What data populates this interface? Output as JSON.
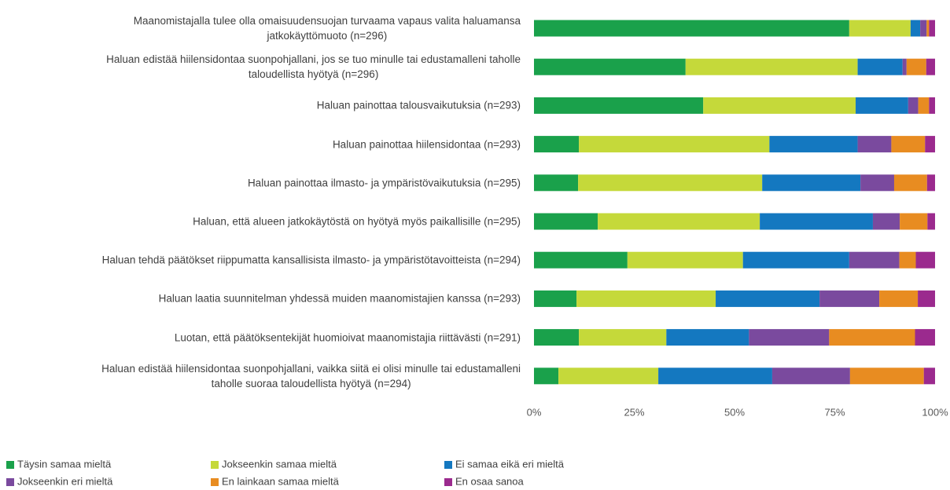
{
  "chart_data": {
    "type": "stacked_bar_horizontal",
    "categories": [
      "Maanomistajalla tulee olla omaisuudensuojan turvaama vapaus valita haluamansa\njatkokäyttömuoto (n=296)",
      "Haluan edistää hiilensidontaa suonpohjallani, jos se tuo minulle tai edustamalleni taholle\ntaloudellista hyötyä (n=296)",
      "Haluan painottaa talousvaikutuksia (n=293)",
      "Haluan painottaa hiilensidontaa (n=293)",
      "Haluan painottaa ilmasto- ja ympäristövaikutuksia (n=295)",
      "Haluan, että alueen jatkokäytöstä on hyötyä myös paikallisille (n=295)",
      "Haluan tehdä päätökset riippumatta kansallisista ilmasto- ja ympäristötavoitteista (n=294)",
      "Haluan laatia suunnitelman yhdessä muiden maanomistajien kanssa (n=293)",
      "Luotan, että päätöksentekijät huomioivat maanomistajia riittävästi (n=291)",
      "Haluan edistää hiilensidontaa suonpohjallani, vaikka siitä ei olisi minulle tai edustamalleni\ntaholle suoraa taloudellista hyötyä (n=294)"
    ],
    "series": [
      {
        "name": "Täysin samaa mieltä",
        "color": "#1aa14b",
        "values": [
          78.6,
          37.8,
          42.2,
          11.2,
          11.0,
          15.9,
          23.3,
          10.6,
          11.2,
          6.1
        ]
      },
      {
        "name": "Jokseenkin samaa mieltä",
        "color": "#c5d93a",
        "values": [
          15.3,
          42.9,
          38.0,
          47.5,
          45.9,
          40.4,
          28.8,
          34.7,
          21.8,
          24.9
        ]
      },
      {
        "name": "Ei samaa eikä eri mieltä",
        "color": "#1478c0",
        "values": [
          2.4,
          11.2,
          13.1,
          22.0,
          24.5,
          28.2,
          26.5,
          25.9,
          20.6,
          28.4
        ]
      },
      {
        "name": "Jokseenkin eri mieltä",
        "color": "#7a4a9e",
        "values": [
          1.6,
          1.0,
          2.5,
          8.4,
          8.4,
          6.7,
          12.5,
          14.9,
          20.0,
          19.4
        ]
      },
      {
        "name": "En lainkaan samaa mieltä",
        "color": "#e88c21",
        "values": [
          0.6,
          4.9,
          2.7,
          8.4,
          8.2,
          6.9,
          4.1,
          9.6,
          21.4,
          18.4
        ]
      },
      {
        "name": "En osaa sanoa",
        "color": "#9b2a8e",
        "values": [
          1.5,
          2.2,
          1.5,
          2.5,
          2.0,
          1.9,
          4.8,
          4.3,
          5.0,
          2.8
        ]
      }
    ],
    "xlim": [
      0,
      100
    ],
    "xticks": [
      {
        "value": 0,
        "label": "0%"
      },
      {
        "value": 25,
        "label": "25%"
      },
      {
        "value": 50,
        "label": "50%"
      },
      {
        "value": 75,
        "label": "75%"
      },
      {
        "value": 100,
        "label": "100%"
      }
    ],
    "grid": false
  }
}
